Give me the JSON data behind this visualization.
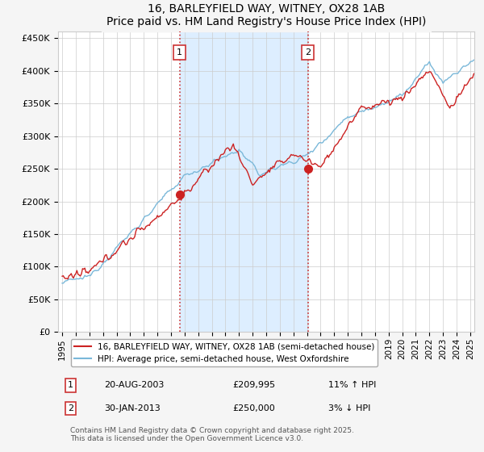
{
  "title": "16, BARLEYFIELD WAY, WITNEY, OX28 1AB",
  "subtitle": "Price paid vs. HM Land Registry's House Price Index (HPI)",
  "ylabel_ticks": [
    "£0",
    "£50K",
    "£100K",
    "£150K",
    "£200K",
    "£250K",
    "£300K",
    "£350K",
    "£400K",
    "£450K"
  ],
  "ytick_values": [
    0,
    50000,
    100000,
    150000,
    200000,
    250000,
    300000,
    350000,
    400000,
    450000
  ],
  "ylim": [
    0,
    460000
  ],
  "xmin_year": 1995,
  "xmax_year": 2025,
  "xtick_years": [
    1995,
    1996,
    1997,
    1998,
    1999,
    2000,
    2001,
    2002,
    2003,
    2004,
    2005,
    2006,
    2007,
    2008,
    2009,
    2010,
    2011,
    2012,
    2013,
    2014,
    2015,
    2016,
    2017,
    2018,
    2019,
    2020,
    2021,
    2022,
    2023,
    2024,
    2025
  ],
  "hpi_color": "#7ab8d9",
  "price_color": "#cc2222",
  "shaded_color": "#ddeeff",
  "sale1_x": 2003.64,
  "sale1_y": 209995,
  "sale1_label": "1",
  "sale2_x": 2013.08,
  "sale2_y": 250000,
  "sale2_label": "2",
  "vline_color": "#cc3333",
  "legend_line1": "16, BARLEYFIELD WAY, WITNEY, OX28 1AB (semi-detached house)",
  "legend_line2": "HPI: Average price, semi-detached house, West Oxfordshire",
  "footer": "Contains HM Land Registry data © Crown copyright and database right 2025.\nThis data is licensed under the Open Government Licence v3.0.",
  "background_color": "#f5f5f5",
  "plot_bg_color": "#ffffff"
}
